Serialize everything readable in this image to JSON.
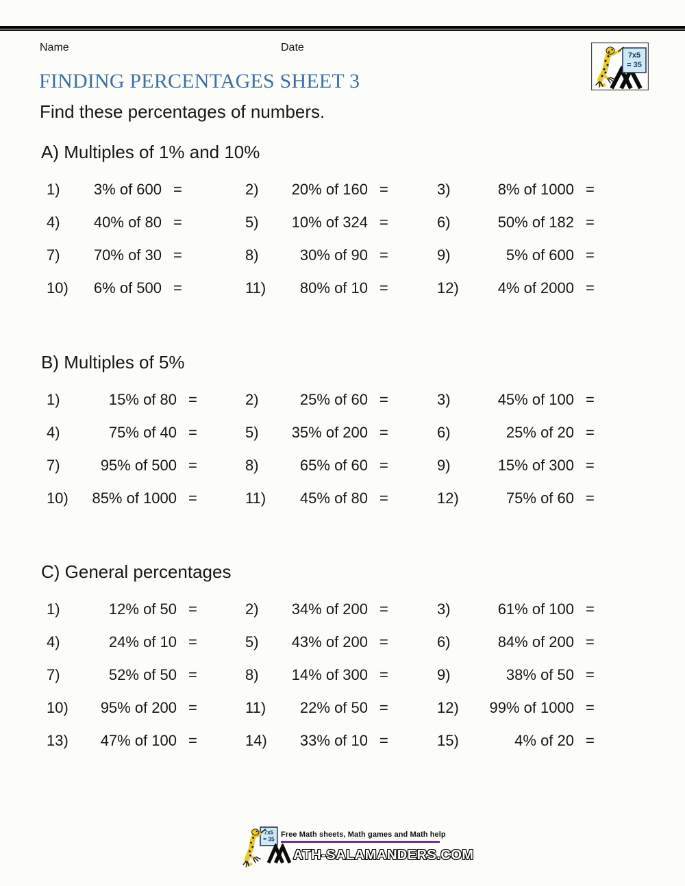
{
  "header": {
    "name_label": "Name",
    "date_label": "Date"
  },
  "title": "FINDING PERCENTAGES SHEET 3",
  "subtitle": "Find these percentages of numbers.",
  "labels": {
    "equals": "="
  },
  "logo": {
    "board_line1": "7x5",
    "board_line2": "= 35"
  },
  "colors": {
    "title_blue": "#3e6fa6",
    "footer_purple": "#7030a0",
    "salamander_yellow": "#e9c82e",
    "board_blue": "#cdeaf5",
    "page_bg": "#fcfdf8"
  },
  "sections": [
    {
      "label": "A) Multiples of 1% and 10%",
      "problems": [
        {
          "num": "1)",
          "expr": "3% of 600"
        },
        {
          "num": "2)",
          "expr": "20% of 160"
        },
        {
          "num": "3)",
          "expr": "8% of 1000"
        },
        {
          "num": "4)",
          "expr": "40% of 80"
        },
        {
          "num": "5)",
          "expr": "10% of 324"
        },
        {
          "num": "6)",
          "expr": "50% of 182"
        },
        {
          "num": "7)",
          "expr": "70% of 30"
        },
        {
          "num": "8)",
          "expr": "30% of 90"
        },
        {
          "num": "9)",
          "expr": "5% of 600"
        },
        {
          "num": "10)",
          "expr": "6% of 500"
        },
        {
          "num": "11)",
          "expr": "80% of 10"
        },
        {
          "num": "12)",
          "expr": "4% of 2000"
        }
      ]
    },
    {
      "label": "B) Multiples of 5%",
      "problems": [
        {
          "num": "1)",
          "expr": "15% of 80"
        },
        {
          "num": "2)",
          "expr": "25% of 60"
        },
        {
          "num": "3)",
          "expr": "45% of 100"
        },
        {
          "num": "4)",
          "expr": "75% of 40"
        },
        {
          "num": "5)",
          "expr": "35% of 200"
        },
        {
          "num": "6)",
          "expr": "25% of 20"
        },
        {
          "num": "7)",
          "expr": "95% of 500"
        },
        {
          "num": "8)",
          "expr": "65% of 60"
        },
        {
          "num": "9)",
          "expr": "15% of 300"
        },
        {
          "num": "10)",
          "expr": "85% of 1000"
        },
        {
          "num": "11)",
          "expr": "45% of 80"
        },
        {
          "num": "12)",
          "expr": "75% of 60"
        }
      ]
    },
    {
      "label": "C) General percentages",
      "problems": [
        {
          "num": "1)",
          "expr": "12% of 50"
        },
        {
          "num": "2)",
          "expr": "34% of 200"
        },
        {
          "num": "3)",
          "expr": "61% of 100"
        },
        {
          "num": "4)",
          "expr": "24% of 10"
        },
        {
          "num": "5)",
          "expr": "43% of 200"
        },
        {
          "num": "6)",
          "expr": "84% of 200"
        },
        {
          "num": "7)",
          "expr": "52% of 50"
        },
        {
          "num": "8)",
          "expr": "14% of 300"
        },
        {
          "num": "9)",
          "expr": "38% of 50"
        },
        {
          "num": "10)",
          "expr": "95% of 200"
        },
        {
          "num": "11)",
          "expr": "22% of 50"
        },
        {
          "num": "12)",
          "expr": "99% of 1000"
        },
        {
          "num": "13)",
          "expr": "47% of 100"
        },
        {
          "num": "14)",
          "expr": "33% of 10"
        },
        {
          "num": "15)",
          "expr": "4% of 20"
        }
      ]
    }
  ],
  "footer": {
    "tagline": "Free Math sheets, Math games and Math help",
    "site": "ATH-SALAMANDERS.COM"
  }
}
